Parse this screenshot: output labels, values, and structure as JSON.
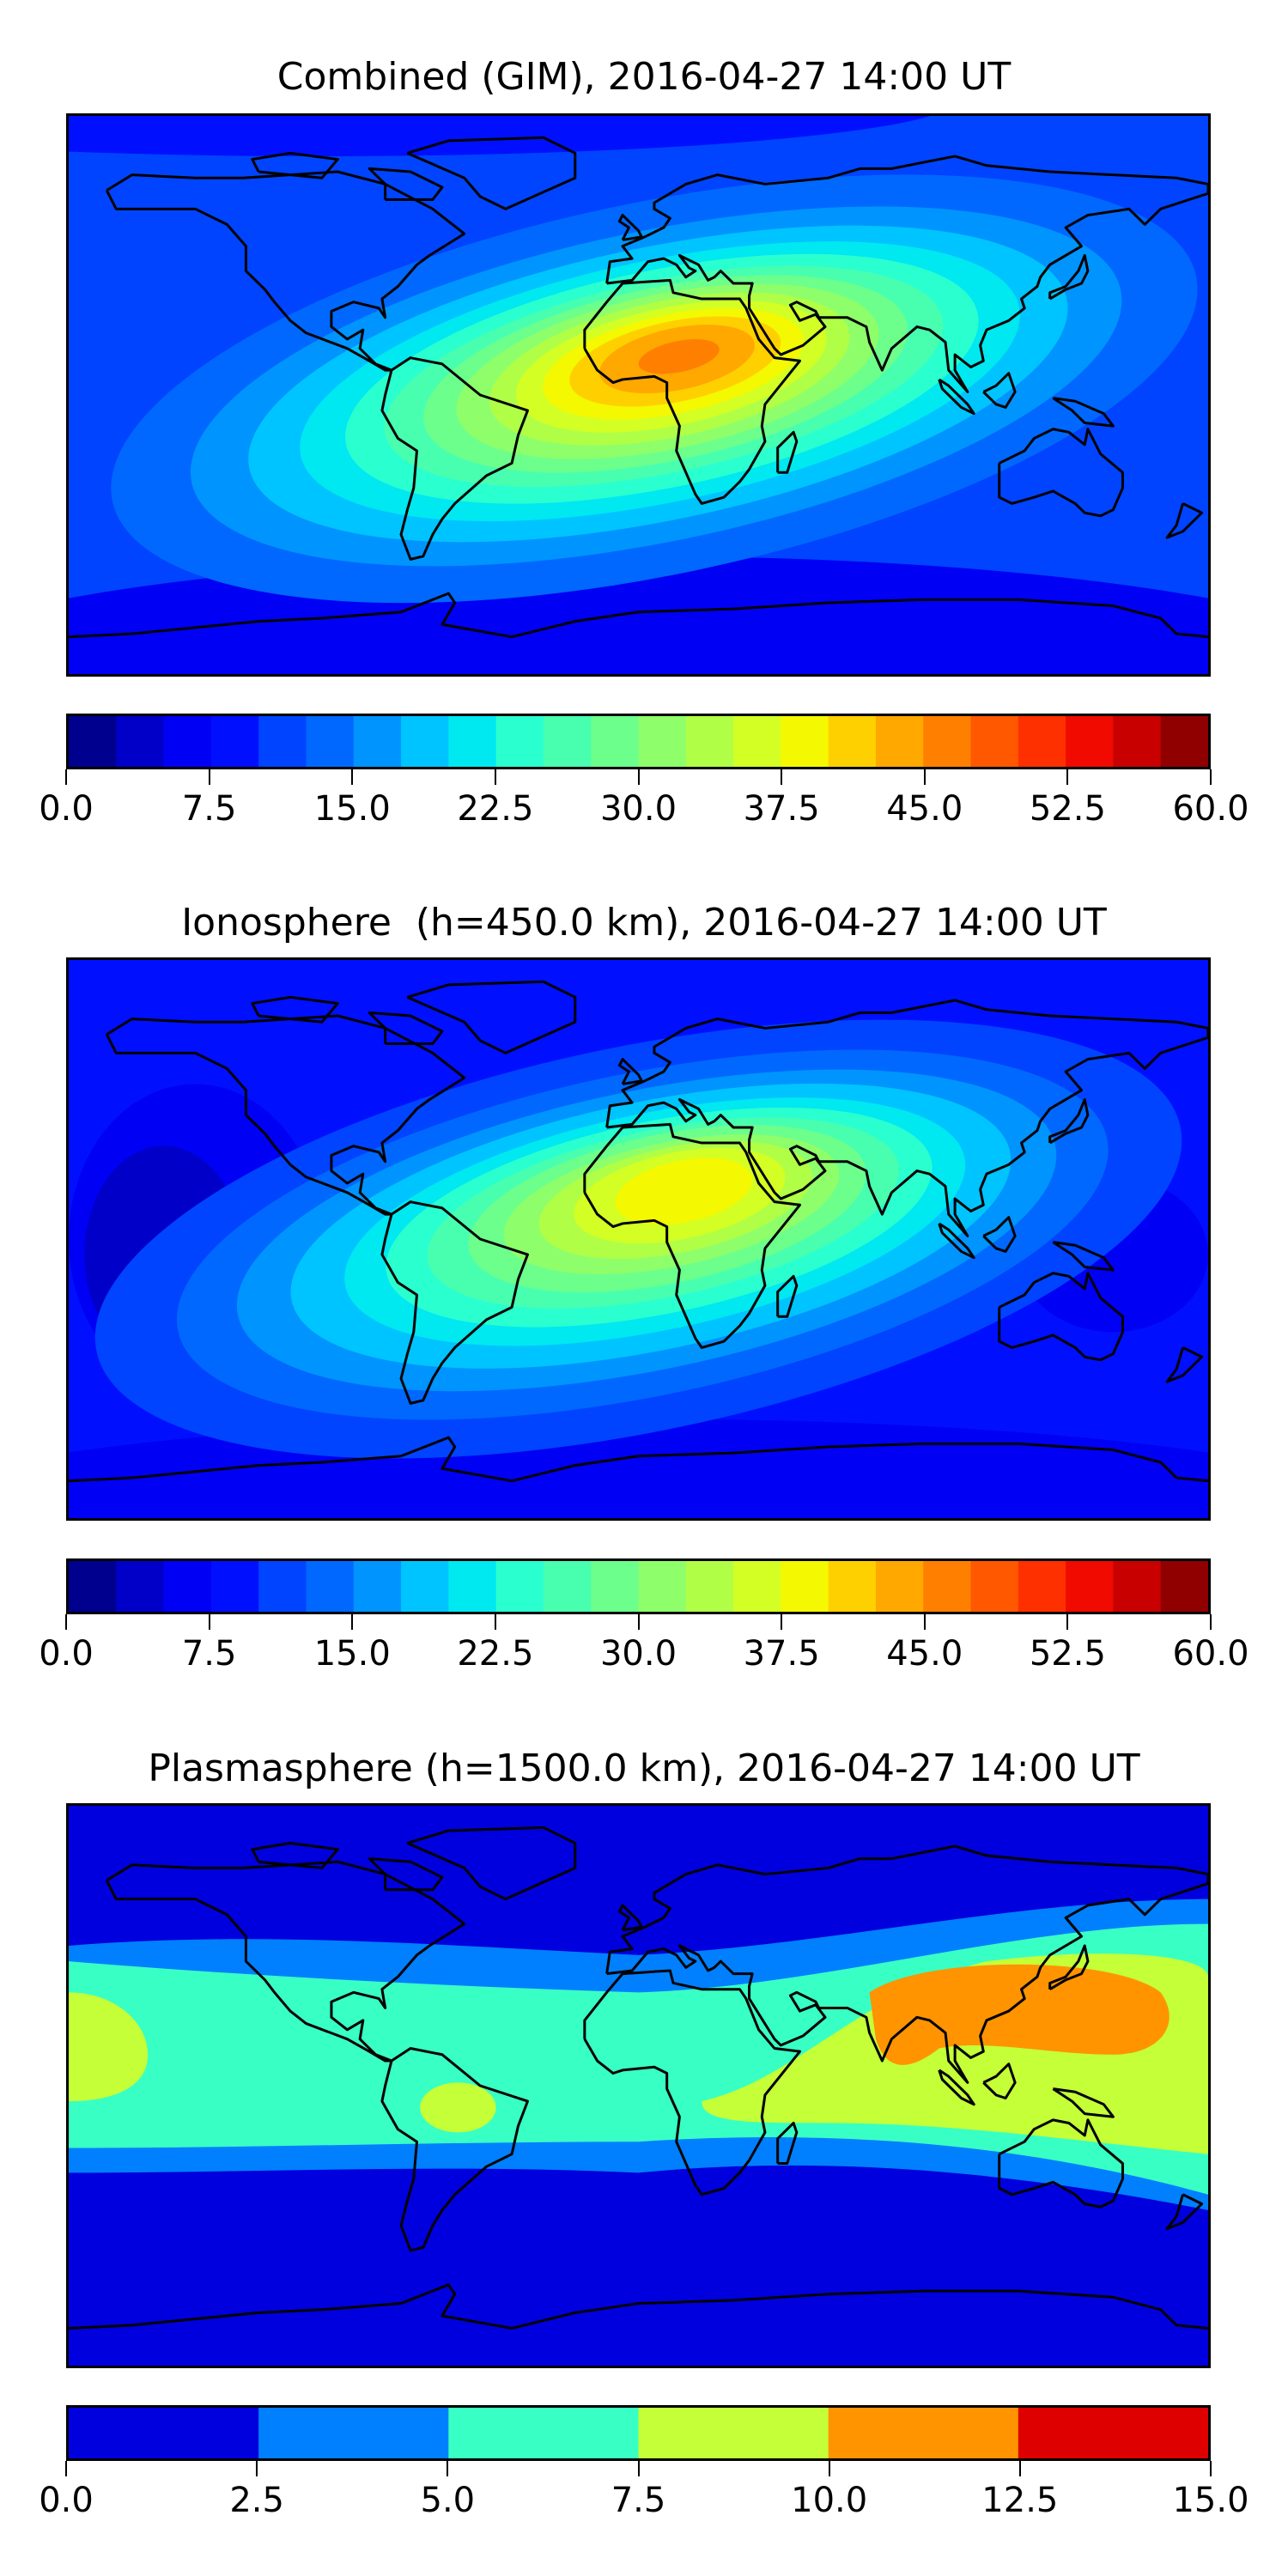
{
  "chart_data": [
    {
      "type": "heatmap",
      "title": "Combined (GIM), 2016-04-27 14:00 UT",
      "projection": "plate-carree",
      "lon_range": [
        -180,
        180
      ],
      "lat_range": [
        -90,
        90
      ],
      "colorbar": {
        "range": [
          0,
          60
        ],
        "levels": [
          0,
          2.5,
          5,
          7.5,
          10,
          12.5,
          15,
          17.5,
          20,
          22.5,
          25,
          27.5,
          30,
          32.5,
          35,
          37.5,
          40,
          42.5,
          45,
          47.5,
          50,
          52.5,
          55,
          57.5,
          60
        ],
        "tick_labels": [
          "0.0",
          "7.5",
          "15.0",
          "22.5",
          "30.0",
          "37.5",
          "45.0",
          "52.5",
          "60.0"
        ],
        "tick_values": [
          0,
          7.5,
          15,
          22.5,
          30,
          37.5,
          45,
          52.5,
          60
        ],
        "colors": [
          "#00008f",
          "#0000c8",
          "#0000f5",
          "#0010ff",
          "#0044ff",
          "#0068ff",
          "#0094ff",
          "#00c4ff",
          "#00e8f0",
          "#2affd0",
          "#48ffb0",
          "#6cff8c",
          "#8eff6a",
          "#b0ff46",
          "#d4ff24",
          "#f4f800",
          "#ffd000",
          "#ffa800",
          "#ff8000",
          "#ff5800",
          "#ff3000",
          "#f00a00",
          "#c80000",
          "#900000"
        ]
      },
      "peak": {
        "value_range": [
          45,
          47.5
        ],
        "region": "North Africa"
      }
    },
    {
      "type": "heatmap",
      "title": "Ionosphere  (h=450.0 km), 2016-04-27 14:00 UT",
      "projection": "plate-carree",
      "lon_range": [
        -180,
        180
      ],
      "lat_range": [
        -90,
        90
      ],
      "colorbar": {
        "range": [
          0,
          60
        ],
        "levels": [
          0,
          2.5,
          5,
          7.5,
          10,
          12.5,
          15,
          17.5,
          20,
          22.5,
          25,
          27.5,
          30,
          32.5,
          35,
          37.5,
          40,
          42.5,
          45,
          47.5,
          50,
          52.5,
          55,
          57.5,
          60
        ],
        "tick_labels": [
          "0.0",
          "7.5",
          "15.0",
          "22.5",
          "30.0",
          "37.5",
          "45.0",
          "52.5",
          "60.0"
        ],
        "tick_values": [
          0,
          7.5,
          15,
          22.5,
          30,
          37.5,
          45,
          52.5,
          60
        ],
        "colors": [
          "#00008f",
          "#0000c8",
          "#0000f5",
          "#0010ff",
          "#0044ff",
          "#0068ff",
          "#0094ff",
          "#00c4ff",
          "#00e8f0",
          "#2affd0",
          "#48ffb0",
          "#6cff8c",
          "#8eff6a",
          "#b0ff46",
          "#d4ff24",
          "#f4f800",
          "#ffd000",
          "#ffa800",
          "#ff8000",
          "#ff5800",
          "#ff3000",
          "#f00a00",
          "#c80000",
          "#900000"
        ]
      },
      "peak": {
        "value_range": [
          37.5,
          40
        ],
        "region": "North Africa"
      }
    },
    {
      "type": "heatmap",
      "title": "Plasmasphere (h=1500.0 km), 2016-04-27 14:00 UT",
      "projection": "plate-carree",
      "lon_range": [
        -180,
        180
      ],
      "lat_range": [
        -90,
        90
      ],
      "colorbar": {
        "range": [
          0,
          15
        ],
        "levels": [
          0,
          2.5,
          5,
          7.5,
          10,
          12.5,
          15
        ],
        "tick_labels": [
          "0.0",
          "2.5",
          "5.0",
          "7.5",
          "10.0",
          "12.5",
          "15.0"
        ],
        "tick_values": [
          0,
          2.5,
          5,
          7.5,
          10,
          12.5,
          15
        ],
        "colors": [
          "#0000de",
          "#0080ff",
          "#38ffc4",
          "#c4ff38",
          "#ff9400",
          "#de0000"
        ]
      },
      "peak": {
        "value_range": [
          10,
          12.5
        ],
        "region": "South and East Asia"
      }
    }
  ]
}
